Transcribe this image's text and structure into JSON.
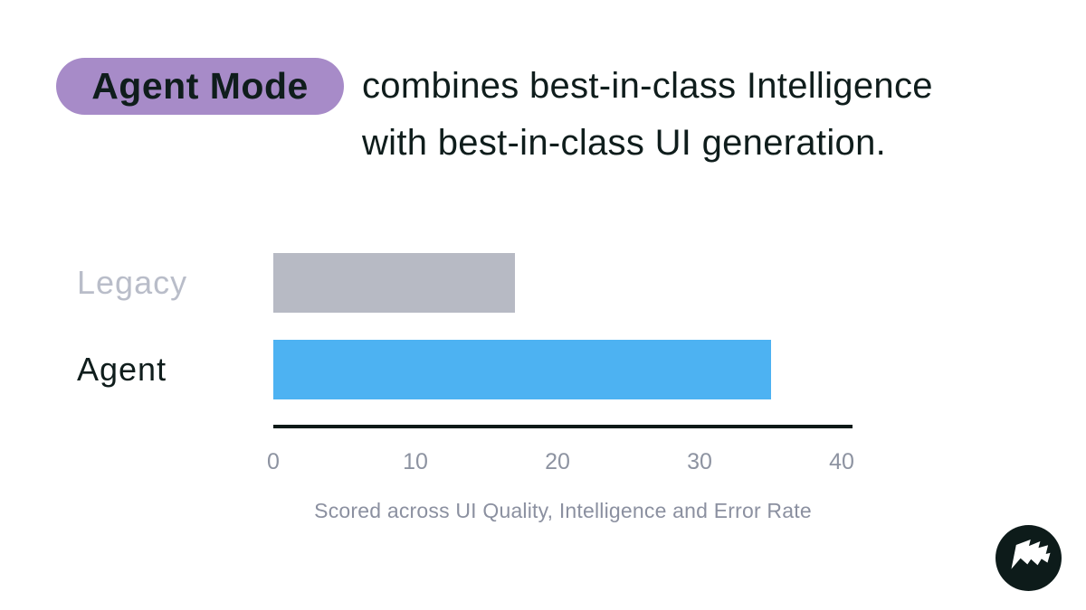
{
  "page": {
    "background": "#ffffff"
  },
  "title": {
    "badge_label": "Agent Mode",
    "badge_color": "#a78bc8",
    "text_color": "#0f1d1c",
    "line1": "combines best-in-class Intelligence",
    "line2": "with best-in-class UI generation."
  },
  "chart_data": {
    "type": "bar",
    "orientation": "horizontal",
    "categories": [
      "Legacy",
      "Agent"
    ],
    "values": [
      17,
      35
    ],
    "xlim": [
      0,
      40
    ],
    "ticks": [
      0,
      10,
      20,
      30,
      40
    ],
    "xlabel": "Scored across UI Quality, Intelligence and Error Rate",
    "grid": false,
    "legend": false,
    "bar_colors": [
      "#b7bac4",
      "#4db2f2"
    ],
    "label_colors": [
      "#b9bdc9",
      "#0f1d1c"
    ],
    "axis_color": "#0c1917",
    "tick_color": "#8d93a1",
    "caption_color": "#8b90a0"
  },
  "branding": {
    "logo_icon": "flag-logo-icon",
    "logo_bg": "#0d1b1a",
    "logo_fg": "#ffffff"
  }
}
